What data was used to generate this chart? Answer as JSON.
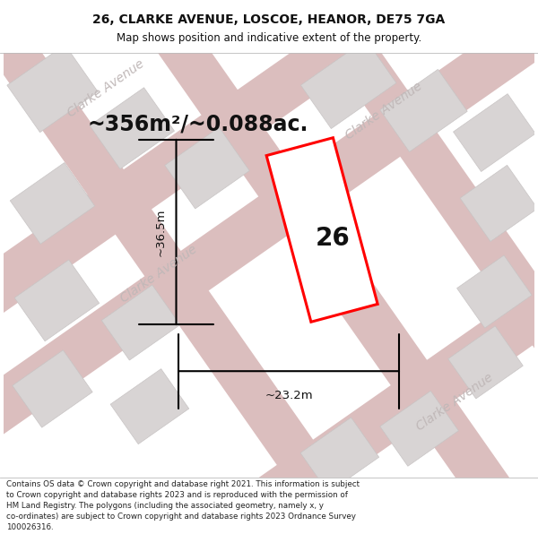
{
  "title": "26, CLARKE AVENUE, LOSCOE, HEANOR, DE75 7GA",
  "subtitle": "Map shows position and indicative extent of the property.",
  "area_text": "~356m²/~0.088ac.",
  "number_label": "26",
  "width_label": "~23.2m",
  "height_label": "~36.5m",
  "footer_text": "Contains OS data © Crown copyright and database right 2021. This information is subject to Crown copyright and database rights 2023 and is reproduced with the permission of HM Land Registry. The polygons (including the associated geometry, namely x, y co-ordinates) are subject to Crown copyright and database rights 2023 Ordnance Survey 100026316.",
  "bg_color": "#f0eeee",
  "road_color": "#dbbebe",
  "building_color": "#d8d4d4",
  "plot_border_color": "#ff0000",
  "title_fontsize": 10,
  "subtitle_fontsize": 8.5,
  "area_fontsize": 17,
  "number_fontsize": 20,
  "label_fontsize": 9.5,
  "road_label_color": "#c0b8b8",
  "road_label_fontsize": 10,
  "footer_fontsize": 6.3
}
